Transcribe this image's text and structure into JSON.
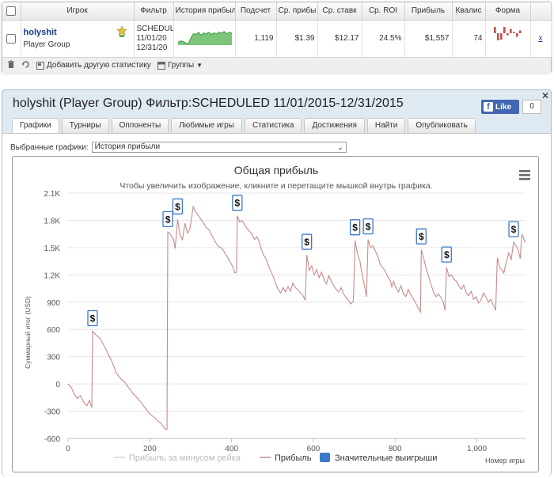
{
  "stats": {
    "columns": [
      "Игрок",
      "Фильтр",
      "История прибыл",
      "Подсчет",
      "Ср. прибы",
      "Ср. ставк",
      "Ср. ROI",
      "Прибыль",
      "Квалис",
      "Форма"
    ],
    "row": {
      "player": "holyshit",
      "group": "Player Group",
      "filter_lines": [
        "SCHEDUL",
        "11/01/20",
        "12/31/20"
      ],
      "count": "1,119",
      "avg_profit": "$1.39",
      "avg_stake": "$12.17",
      "avg_roi": "24.5%",
      "profit": "$1,557",
      "ability": "74",
      "remove": "x",
      "form_values": [
        1,
        -1,
        -0.9,
        0.9,
        -0.3,
        0.6,
        0.2,
        -0.5,
        0.4
      ],
      "sparkline": [
        0.2,
        0.3,
        0.25,
        0.15,
        0.1,
        0.5,
        0.8,
        0.75,
        0.9,
        0.7,
        0.85,
        0.8,
        0.9,
        0.75,
        0.85,
        0.8,
        0.9,
        0.85,
        0.95,
        0.8,
        0.9,
        0.85
      ]
    },
    "toolbar": {
      "add_stat": "Добавить другую статистику",
      "groups": "Группы"
    }
  },
  "panel": {
    "title": "holyshit (Player Group) Фильтр:SCHEDULED 11/01/2015-12/31/2015",
    "like_label": "Like",
    "like_count": "0",
    "tabs": [
      "Графики",
      "Турниры",
      "Оппоненты",
      "Любимые игры",
      "Статистика",
      "Достижения",
      "Найти",
      "Опубликовать"
    ],
    "active_tab": 0,
    "select_label": "Выбранные графики:",
    "select_value": "История прибыли"
  },
  "chart_data": {
    "type": "line",
    "title": "Общая прибыль",
    "subtitle": "Чтобы увеличить изображение, кликните и перетащите мышкой внутрь графика.",
    "xlabel": "Номер игры",
    "ylabel": "Суммарный итог (USD)",
    "xlim": [
      0,
      1119
    ],
    "ylim": [
      -600,
      2100
    ],
    "yticks": [
      -600,
      -300,
      0,
      300,
      600,
      900,
      1200,
      1500,
      1800,
      2100
    ],
    "ytick_labels": [
      "-600",
      "-300",
      "0",
      "300",
      "600",
      "900",
      "1.2K",
      "1.5K",
      "1.8K",
      "2.1K"
    ],
    "xticks": [
      0,
      200,
      400,
      600,
      800,
      1000
    ],
    "xtick_labels": [
      "0",
      "200",
      "400",
      "600",
      "800",
      "1,000"
    ],
    "legend": [
      "Прибыль за минусом рейка",
      "Прибыль",
      "Значительные выигрыши"
    ],
    "series": [
      {
        "name": "Прибыль",
        "color": "#c98a8a",
        "points": [
          [
            0,
            0
          ],
          [
            8,
            -40
          ],
          [
            15,
            -110
          ],
          [
            22,
            -160
          ],
          [
            30,
            -130
          ],
          [
            38,
            -200
          ],
          [
            46,
            -240
          ],
          [
            52,
            -180
          ],
          [
            58,
            -260
          ],
          [
            60,
            580
          ],
          [
            68,
            540
          ],
          [
            78,
            500
          ],
          [
            88,
            420
          ],
          [
            98,
            330
          ],
          [
            108,
            240
          ],
          [
            118,
            120
          ],
          [
            128,
            60
          ],
          [
            138,
            20
          ],
          [
            148,
            -40
          ],
          [
            158,
            -100
          ],
          [
            168,
            -150
          ],
          [
            178,
            -200
          ],
          [
            188,
            -260
          ],
          [
            198,
            -320
          ],
          [
            208,
            -360
          ],
          [
            218,
            -400
          ],
          [
            228,
            -440
          ],
          [
            238,
            -500
          ],
          [
            242,
            -500
          ],
          [
            244,
            1670
          ],
          [
            250,
            1650
          ],
          [
            258,
            1590
          ],
          [
            262,
            1490
          ],
          [
            268,
            1810
          ],
          [
            274,
            1640
          ],
          [
            280,
            1590
          ],
          [
            286,
            1770
          ],
          [
            292,
            1660
          ],
          [
            298,
            1700
          ],
          [
            306,
            1950
          ],
          [
            314,
            1880
          ],
          [
            322,
            1830
          ],
          [
            330,
            1780
          ],
          [
            338,
            1720
          ],
          [
            344,
            1700
          ],
          [
            350,
            1650
          ],
          [
            356,
            1600
          ],
          [
            362,
            1550
          ],
          [
            368,
            1510
          ],
          [
            374,
            1500
          ],
          [
            380,
            1470
          ],
          [
            386,
            1420
          ],
          [
            392,
            1380
          ],
          [
            398,
            1330
          ],
          [
            404,
            1280
          ],
          [
            408,
            1220
          ],
          [
            412,
            1230
          ],
          [
            414,
            1850
          ],
          [
            420,
            1780
          ],
          [
            426,
            1800
          ],
          [
            432,
            1750
          ],
          [
            438,
            1710
          ],
          [
            444,
            1680
          ],
          [
            450,
            1650
          ],
          [
            456,
            1590
          ],
          [
            462,
            1620
          ],
          [
            468,
            1560
          ],
          [
            472,
            1490
          ],
          [
            478,
            1420
          ],
          [
            484,
            1380
          ],
          [
            490,
            1300
          ],
          [
            496,
            1240
          ],
          [
            502,
            1180
          ],
          [
            508,
            1100
          ],
          [
            514,
            1040
          ],
          [
            520,
            1000
          ],
          [
            526,
            1060
          ],
          [
            532,
            1010
          ],
          [
            538,
            1070
          ],
          [
            544,
            1020
          ],
          [
            550,
            1110
          ],
          [
            556,
            1060
          ],
          [
            562,
            1040
          ],
          [
            568,
            1000
          ],
          [
            574,
            980
          ],
          [
            580,
            920
          ],
          [
            584,
            1420
          ],
          [
            590,
            1250
          ],
          [
            596,
            1300
          ],
          [
            602,
            1200
          ],
          [
            608,
            1260
          ],
          [
            614,
            1170
          ],
          [
            620,
            1230
          ],
          [
            626,
            1150
          ],
          [
            632,
            1100
          ],
          [
            638,
            1190
          ],
          [
            644,
            1130
          ],
          [
            650,
            1080
          ],
          [
            656,
            1040
          ],
          [
            662,
            1010
          ],
          [
            668,
            1060
          ],
          [
            674,
            990
          ],
          [
            680,
            950
          ],
          [
            686,
            920
          ],
          [
            692,
            880
          ],
          [
            698,
            910
          ],
          [
            702,
            1580
          ],
          [
            708,
            1430
          ],
          [
            714,
            1350
          ],
          [
            720,
            1190
          ],
          [
            726,
            1060
          ],
          [
            730,
            960
          ],
          [
            734,
            1590
          ],
          [
            740,
            1500
          ],
          [
            746,
            1520
          ],
          [
            752,
            1460
          ],
          [
            758,
            1400
          ],
          [
            764,
            1310
          ],
          [
            770,
            1280
          ],
          [
            776,
            1240
          ],
          [
            782,
            1180
          ],
          [
            788,
            1140
          ],
          [
            792,
            1070
          ],
          [
            796,
            1130
          ],
          [
            802,
            1060
          ],
          [
            808,
            1010
          ],
          [
            814,
            1080
          ],
          [
            820,
            1000
          ],
          [
            826,
            960
          ],
          [
            832,
            1040
          ],
          [
            838,
            980
          ],
          [
            844,
            940
          ],
          [
            850,
            890
          ],
          [
            856,
            840
          ],
          [
            862,
            790
          ],
          [
            864,
            1480
          ],
          [
            870,
            1380
          ],
          [
            876,
            1270
          ],
          [
            882,
            1180
          ],
          [
            888,
            1090
          ],
          [
            894,
            1010
          ],
          [
            900,
            960
          ],
          [
            906,
            990
          ],
          [
            912,
            950
          ],
          [
            918,
            900
          ],
          [
            922,
            810
          ],
          [
            926,
            1280
          ],
          [
            932,
            1180
          ],
          [
            938,
            1200
          ],
          [
            944,
            1150
          ],
          [
            950,
            1130
          ],
          [
            956,
            1080
          ],
          [
            962,
            1040
          ],
          [
            968,
            1090
          ],
          [
            974,
            1000
          ],
          [
            980,
            970
          ],
          [
            986,
            1020
          ],
          [
            992,
            930
          ],
          [
            998,
            960
          ],
          [
            1004,
            890
          ],
          [
            1010,
            920
          ],
          [
            1016,
            1000
          ],
          [
            1022,
            960
          ],
          [
            1028,
            900
          ],
          [
            1034,
            930
          ],
          [
            1040,
            870
          ],
          [
            1046,
            810
          ],
          [
            1050,
            1390
          ],
          [
            1056,
            1280
          ],
          [
            1062,
            1250
          ],
          [
            1066,
            1220
          ],
          [
            1072,
            1340
          ],
          [
            1078,
            1440
          ],
          [
            1084,
            1370
          ],
          [
            1090,
            1560
          ],
          [
            1096,
            1520
          ],
          [
            1102,
            1460
          ],
          [
            1106,
            1380
          ],
          [
            1110,
            1650
          ],
          [
            1116,
            1580
          ],
          [
            1119,
            1557
          ]
        ]
      }
    ],
    "big_wins": [
      {
        "x": 60,
        "y": 580
      },
      {
        "x": 244,
        "y": 1670
      },
      {
        "x": 268,
        "y": 1810
      },
      {
        "x": 414,
        "y": 1850
      },
      {
        "x": 584,
        "y": 1420
      },
      {
        "x": 702,
        "y": 1580
      },
      {
        "x": 734,
        "y": 1590
      },
      {
        "x": 864,
        "y": 1480
      },
      {
        "x": 926,
        "y": 1280
      },
      {
        "x": 1090,
        "y": 1560
      }
    ],
    "big_win_symbol": "$",
    "grid": true,
    "legend_position": "bottom"
  }
}
